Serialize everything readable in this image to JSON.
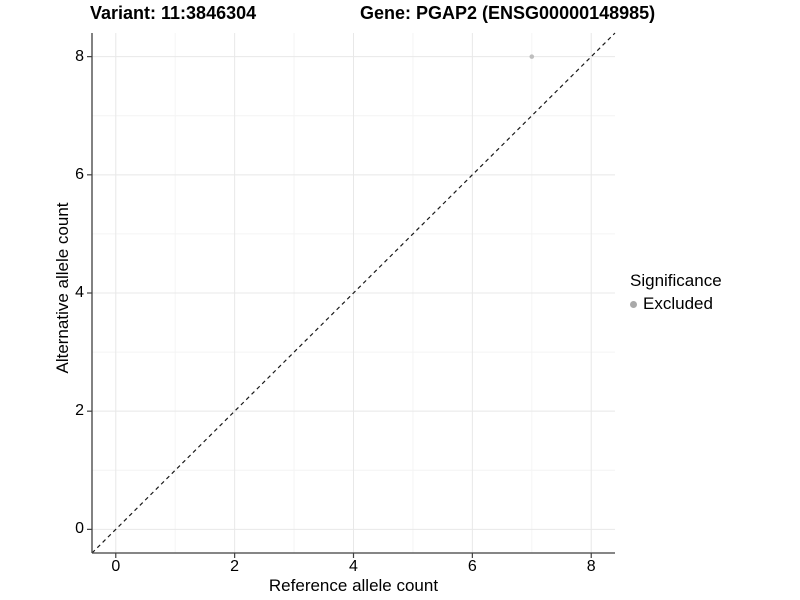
{
  "titles": {
    "left": "Variant: 11:3846304",
    "right": "Gene: PGAP2 (ENSG00000148985)"
  },
  "chart_data": {
    "type": "scatter",
    "xlabel": "Reference allele count",
    "ylabel": "Alternative allele count",
    "xlim": [
      -0.4,
      8.4
    ],
    "ylim": [
      -0.4,
      8.4
    ],
    "x_ticks": [
      0,
      2,
      4,
      6,
      8
    ],
    "y_ticks": [
      0,
      2,
      4,
      6,
      8
    ],
    "x_minor_ticks": [
      1,
      3,
      5,
      7
    ],
    "y_minor_ticks": [
      1,
      3,
      5,
      7
    ],
    "grid": "major and minor, light gray on white panel",
    "points": [
      {
        "x": 7,
        "y": 8,
        "series": "Excluded"
      }
    ],
    "reference_line": {
      "equation": "y = x",
      "style": "dashed"
    },
    "legend": {
      "title": "Significance",
      "position": "right",
      "items": [
        {
          "label": "Excluded",
          "marker": "circle"
        }
      ]
    }
  },
  "colors": {
    "point": "#bebebe",
    "legend_marker": "#a9a9a9",
    "grid_major": "#e8e8e8",
    "grid_minor": "#f4f4f4",
    "axis_line": "#3f3f3f",
    "dashed_line": "#1a1a1a",
    "text": "#000000"
  }
}
